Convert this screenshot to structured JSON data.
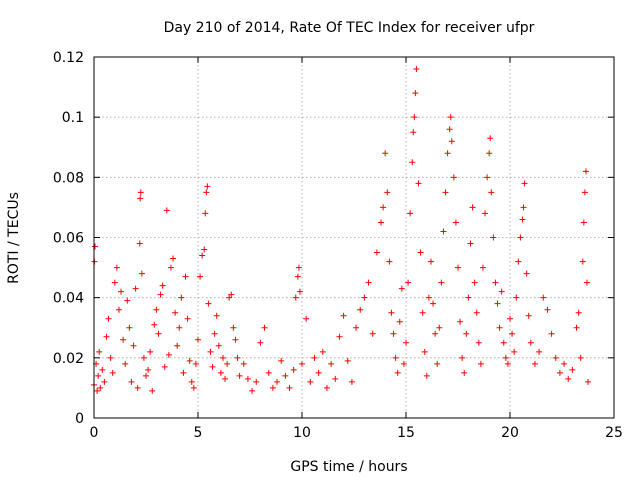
{
  "chart_data": {
    "type": "scatter",
    "title": "Day 210 of 2014, Rate Of TEC Index for receiver ufpr",
    "xlabel": "GPS time / hours",
    "ylabel": "ROTI / TECUs",
    "xlim": [
      0,
      25
    ],
    "ylim": [
      0,
      0.12
    ],
    "xticks": [
      "0",
      "5",
      "10",
      "15",
      "20",
      "25"
    ],
    "yticks": [
      "0",
      "0.02",
      "0.04",
      "0.06",
      "0.08",
      "0.1",
      "0.12"
    ],
    "grid": true,
    "marker": "+",
    "color": "#ff0000",
    "series": [
      {
        "name": "ROTI",
        "points": [
          [
            0.0,
            0.011
          ],
          [
            0.02,
            0.052
          ],
          [
            0.05,
            0.057
          ],
          [
            0.1,
            0.018
          ],
          [
            0.15,
            0.009
          ],
          [
            0.2,
            0.014
          ],
          [
            0.25,
            0.022
          ],
          [
            0.3,
            0.01
          ],
          [
            0.4,
            0.016
          ],
          [
            0.5,
            0.012
          ],
          [
            0.6,
            0.027
          ],
          [
            0.7,
            0.033
          ],
          [
            0.8,
            0.02
          ],
          [
            0.9,
            0.015
          ],
          [
            1.0,
            0.045
          ],
          [
            1.1,
            0.05
          ],
          [
            1.2,
            0.036
          ],
          [
            1.3,
            0.042
          ],
          [
            1.4,
            0.026
          ],
          [
            1.5,
            0.018
          ],
          [
            1.6,
            0.039
          ],
          [
            1.7,
            0.03
          ],
          [
            1.8,
            0.012
          ],
          [
            1.9,
            0.024
          ],
          [
            2.0,
            0.043
          ],
          [
            2.1,
            0.01
          ],
          [
            2.2,
            0.058
          ],
          [
            2.22,
            0.073
          ],
          [
            2.25,
            0.075
          ],
          [
            2.3,
            0.048
          ],
          [
            2.4,
            0.02
          ],
          [
            2.5,
            0.014
          ],
          [
            2.6,
            0.016
          ],
          [
            2.7,
            0.022
          ],
          [
            2.8,
            0.009
          ],
          [
            2.9,
            0.031
          ],
          [
            3.0,
            0.036
          ],
          [
            3.1,
            0.028
          ],
          [
            3.2,
            0.041
          ],
          [
            3.3,
            0.044
          ],
          [
            3.4,
            0.017
          ],
          [
            3.5,
            0.069
          ],
          [
            3.6,
            0.021
          ],
          [
            3.7,
            0.05
          ],
          [
            3.8,
            0.053
          ],
          [
            3.9,
            0.035
          ],
          [
            4.0,
            0.024
          ],
          [
            4.1,
            0.03
          ],
          [
            4.2,
            0.04
          ],
          [
            4.3,
            0.015
          ],
          [
            4.4,
            0.047
          ],
          [
            4.5,
            0.033
          ],
          [
            4.6,
            0.019
          ],
          [
            4.7,
            0.012
          ],
          [
            4.8,
            0.01
          ],
          [
            4.9,
            0.018
          ],
          [
            5.0,
            0.026
          ],
          [
            5.1,
            0.047
          ],
          [
            5.2,
            0.054
          ],
          [
            5.3,
            0.056
          ],
          [
            5.35,
            0.068
          ],
          [
            5.4,
            0.075
          ],
          [
            5.45,
            0.077
          ],
          [
            5.5,
            0.038
          ],
          [
            5.6,
            0.022
          ],
          [
            5.7,
            0.017
          ],
          [
            5.8,
            0.028
          ],
          [
            5.9,
            0.034
          ],
          [
            6.0,
            0.024
          ],
          [
            6.1,
            0.015
          ],
          [
            6.2,
            0.02
          ],
          [
            6.3,
            0.013
          ],
          [
            6.4,
            0.018
          ],
          [
            6.5,
            0.04
          ],
          [
            6.6,
            0.041
          ],
          [
            6.7,
            0.03
          ],
          [
            6.8,
            0.026
          ],
          [
            6.9,
            0.02
          ],
          [
            7.0,
            0.014
          ],
          [
            7.2,
            0.018
          ],
          [
            7.4,
            0.013
          ],
          [
            7.6,
            0.009
          ],
          [
            7.8,
            0.012
          ],
          [
            8.0,
            0.025
          ],
          [
            8.2,
            0.03
          ],
          [
            8.4,
            0.015
          ],
          [
            8.6,
            0.01
          ],
          [
            8.8,
            0.012
          ],
          [
            9.0,
            0.019
          ],
          [
            9.2,
            0.014
          ],
          [
            9.4,
            0.01
          ],
          [
            9.6,
            0.016
          ],
          [
            9.7,
            0.04
          ],
          [
            9.8,
            0.047
          ],
          [
            9.85,
            0.05
          ],
          [
            9.9,
            0.042
          ],
          [
            10.0,
            0.018
          ],
          [
            10.2,
            0.033
          ],
          [
            10.4,
            0.012
          ],
          [
            10.6,
            0.02
          ],
          [
            10.8,
            0.015
          ],
          [
            11.0,
            0.022
          ],
          [
            11.2,
            0.01
          ],
          [
            11.4,
            0.018
          ],
          [
            11.6,
            0.013
          ],
          [
            11.8,
            0.027
          ],
          [
            12.0,
            0.034
          ],
          [
            12.2,
            0.019
          ],
          [
            12.4,
            0.012
          ],
          [
            12.6,
            0.03
          ],
          [
            12.8,
            0.036
          ],
          [
            13.0,
            0.04
          ],
          [
            13.2,
            0.045
          ],
          [
            13.4,
            0.028
          ],
          [
            13.6,
            0.055
          ],
          [
            13.8,
            0.065
          ],
          [
            13.9,
            0.07
          ],
          [
            14.0,
            0.088
          ],
          [
            14.1,
            0.075
          ],
          [
            14.2,
            0.052
          ],
          [
            14.3,
            0.035
          ],
          [
            14.4,
            0.028
          ],
          [
            14.5,
            0.02
          ],
          [
            14.6,
            0.015
          ],
          [
            14.7,
            0.032
          ],
          [
            14.8,
            0.043
          ],
          [
            14.9,
            0.018
          ],
          [
            15.0,
            0.025
          ],
          [
            15.1,
            0.045
          ],
          [
            15.2,
            0.068
          ],
          [
            15.3,
            0.085
          ],
          [
            15.35,
            0.095
          ],
          [
            15.4,
            0.1
          ],
          [
            15.45,
            0.108
          ],
          [
            15.5,
            0.116
          ],
          [
            15.6,
            0.078
          ],
          [
            15.7,
            0.055
          ],
          [
            15.8,
            0.035
          ],
          [
            15.9,
            0.022
          ],
          [
            16.0,
            0.014
          ],
          [
            16.1,
            0.04
          ],
          [
            16.2,
            0.052
          ],
          [
            16.3,
            0.038
          ],
          [
            16.4,
            0.028
          ],
          [
            16.5,
            0.018
          ],
          [
            16.6,
            0.03
          ],
          [
            16.7,
            0.045
          ],
          [
            16.8,
            0.062
          ],
          [
            16.9,
            0.075
          ],
          [
            17.0,
            0.088
          ],
          [
            17.1,
            0.096
          ],
          [
            17.15,
            0.1
          ],
          [
            17.2,
            0.092
          ],
          [
            17.3,
            0.08
          ],
          [
            17.4,
            0.065
          ],
          [
            17.5,
            0.05
          ],
          [
            17.6,
            0.032
          ],
          [
            17.7,
            0.02
          ],
          [
            17.8,
            0.015
          ],
          [
            17.9,
            0.028
          ],
          [
            18.0,
            0.04
          ],
          [
            18.1,
            0.058
          ],
          [
            18.2,
            0.07
          ],
          [
            18.3,
            0.045
          ],
          [
            18.4,
            0.035
          ],
          [
            18.5,
            0.025
          ],
          [
            18.6,
            0.018
          ],
          [
            18.7,
            0.05
          ],
          [
            18.8,
            0.068
          ],
          [
            18.9,
            0.08
          ],
          [
            19.0,
            0.088
          ],
          [
            19.05,
            0.093
          ],
          [
            19.1,
            0.075
          ],
          [
            19.2,
            0.06
          ],
          [
            19.3,
            0.045
          ],
          [
            19.4,
            0.038
          ],
          [
            19.5,
            0.03
          ],
          [
            19.6,
            0.042
          ],
          [
            19.7,
            0.025
          ],
          [
            19.8,
            0.02
          ],
          [
            19.9,
            0.018
          ],
          [
            20.0,
            0.033
          ],
          [
            20.1,
            0.028
          ],
          [
            20.2,
            0.022
          ],
          [
            20.3,
            0.04
          ],
          [
            20.4,
            0.052
          ],
          [
            20.5,
            0.06
          ],
          [
            20.6,
            0.066
          ],
          [
            20.65,
            0.07
          ],
          [
            20.7,
            0.078
          ],
          [
            20.8,
            0.048
          ],
          [
            20.9,
            0.034
          ],
          [
            21.0,
            0.025
          ],
          [
            21.2,
            0.018
          ],
          [
            21.4,
            0.022
          ],
          [
            21.6,
            0.04
          ],
          [
            21.8,
            0.036
          ],
          [
            22.0,
            0.028
          ],
          [
            22.2,
            0.02
          ],
          [
            22.4,
            0.015
          ],
          [
            22.6,
            0.018
          ],
          [
            22.8,
            0.013
          ],
          [
            23.0,
            0.016
          ],
          [
            23.2,
            0.03
          ],
          [
            23.3,
            0.035
          ],
          [
            23.4,
            0.02
          ],
          [
            23.5,
            0.052
          ],
          [
            23.55,
            0.065
          ],
          [
            23.6,
            0.075
          ],
          [
            23.65,
            0.082
          ],
          [
            23.7,
            0.045
          ],
          [
            23.75,
            0.012
          ]
        ]
      }
    ]
  }
}
